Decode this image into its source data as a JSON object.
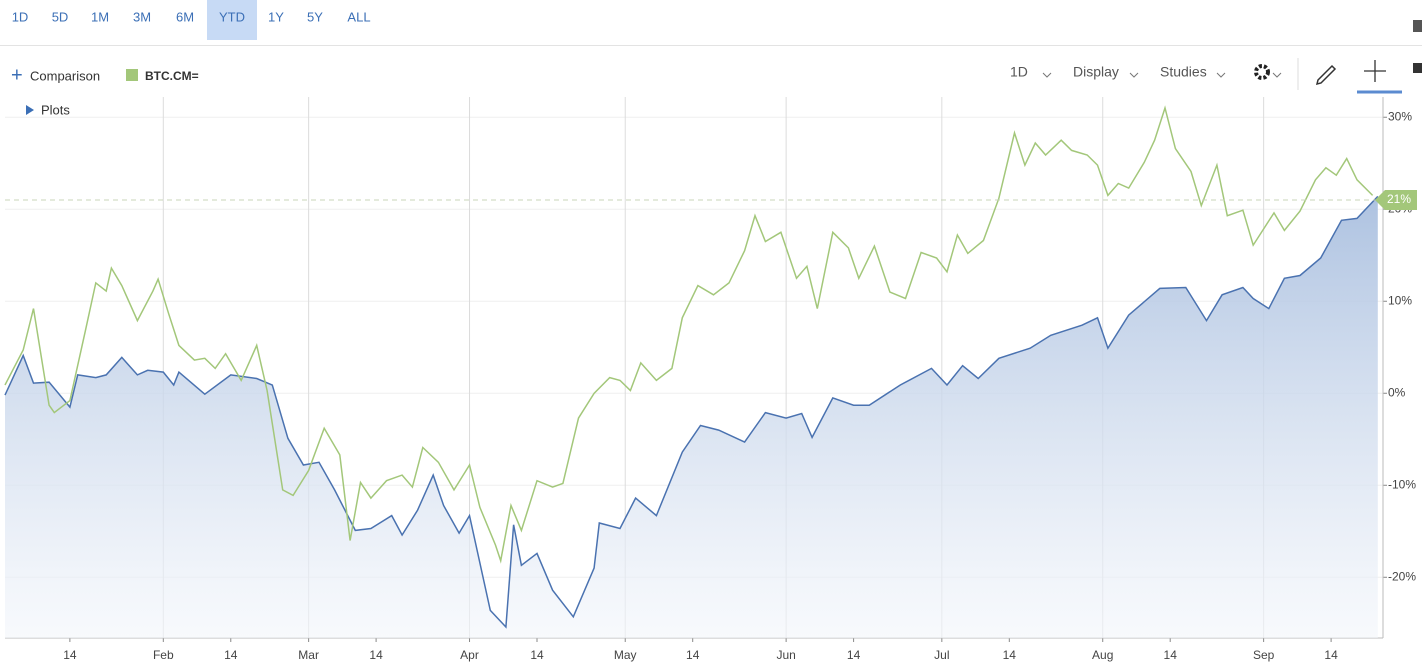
{
  "toolbar": {
    "ranges": [
      "1D",
      "5D",
      "1M",
      "3M",
      "6M",
      "YTD",
      "1Y",
      "5Y",
      "ALL"
    ],
    "selected": 5
  },
  "header": {
    "comparison": "Comparison",
    "plots": "Plots",
    "interval": "1D",
    "display": "Display",
    "studies": "Studies"
  },
  "chart_data": {
    "type": "line",
    "series": [
      {
        "color": "#4a72b0",
        "area": true,
        "x": [
          1.5,
          5,
          7,
          10,
          14,
          15.5,
          19,
          21,
          24,
          27,
          29,
          32,
          34,
          35,
          40,
          45,
          50,
          53,
          56,
          59,
          62,
          65,
          69,
          72,
          76,
          78,
          81,
          84,
          86,
          89,
          91,
          95,
          98,
          99.5,
          101,
          104,
          107,
          111,
          115,
          116,
          120,
          123,
          127,
          132,
          135.5,
          139,
          144,
          148,
          152,
          155,
          157,
          161,
          165,
          168,
          174,
          180,
          183,
          186,
          189,
          193,
          199,
          203,
          209,
          212,
          214,
          218,
          224,
          229,
          233,
          236,
          240,
          242,
          245,
          248,
          251,
          255,
          259,
          262,
          266
        ],
        "values": [
          -0.2,
          4.1,
          1.1,
          1.2,
          -1.5,
          2,
          1.7,
          2,
          3.9,
          2,
          2.5,
          2.3,
          0.9,
          2.3,
          -0.1,
          2,
          1.6,
          0.9,
          -4.9,
          -7.8,
          -7.5,
          -10.5,
          -14.9,
          -14.7,
          -13.3,
          -15.4,
          -12.7,
          -8.9,
          -12.2,
          -15.2,
          -13.3,
          -23.6,
          -25.4,
          -14.3,
          -18.7,
          -17.4,
          -21.4,
          -24.3,
          -19,
          -14.1,
          -14.7,
          -11.4,
          -13.3,
          -6.4,
          -3.5,
          -4,
          -5.3,
          -2.1,
          -2.7,
          -2.2,
          -4.8,
          -0.5,
          -1.3,
          -1.3,
          0.9,
          2.7,
          0.9,
          3,
          1.6,
          3.8,
          4.9,
          6.3,
          7.4,
          8.2,
          4.9,
          8.5,
          11.4,
          11.5,
          7.9,
          10.7,
          11.5,
          10.3,
          9.2,
          12.5,
          12.8,
          14.7,
          18.8,
          19,
          21.4
        ]
      },
      {
        "name": "BTC.CM=",
        "color": "#a3c77a",
        "x": [
          1.5,
          5,
          7,
          10,
          11,
          14,
          17,
          19,
          21,
          22,
          24,
          27,
          30,
          31,
          33,
          35,
          38,
          40,
          42,
          44,
          47,
          50,
          52,
          55,
          57,
          60,
          63,
          66,
          68,
          70,
          72,
          75,
          78,
          80,
          82,
          85,
          88,
          91,
          93,
          96,
          97,
          99,
          101,
          104,
          107,
          109,
          112,
          115,
          118,
          120,
          122,
          124,
          127,
          130,
          132,
          135,
          138,
          141,
          144,
          146,
          148,
          151,
          154,
          156,
          158,
          161,
          164,
          166,
          169,
          172,
          175,
          178,
          181,
          183,
          185,
          187,
          190,
          193,
          196,
          198,
          200,
          202,
          205,
          207,
          210,
          212,
          214,
          216,
          218,
          221,
          223,
          225,
          227,
          230,
          232,
          235,
          237,
          240,
          242,
          246,
          248,
          251,
          254,
          256,
          258,
          260,
          262,
          265
        ],
        "values": [
          0.9,
          4.7,
          9.2,
          -1.3,
          -2.1,
          -0.8,
          6.8,
          12,
          11.1,
          13.6,
          11.7,
          7.9,
          11.1,
          12.4,
          8.7,
          5.2,
          3.6,
          3.8,
          2.7,
          4.3,
          1.4,
          5.2,
          0.3,
          -10.5,
          -11.1,
          -8.4,
          -3.8,
          -6.7,
          -16,
          -9.7,
          -11.4,
          -9.5,
          -8.9,
          -10.2,
          -5.9,
          -7.5,
          -10.5,
          -7.8,
          -12.4,
          -16.5,
          -18.2,
          -12.2,
          -14.9,
          -9.5,
          -10.2,
          -9.8,
          -2.7,
          0,
          1.7,
          1.4,
          0.3,
          3.3,
          1.4,
          2.7,
          8.2,
          11.7,
          10.7,
          12,
          15.5,
          19.3,
          16.5,
          17.5,
          12.5,
          13.8,
          9.2,
          17.5,
          15.8,
          12.5,
          16,
          11,
          10.3,
          15.3,
          14.7,
          13.2,
          17.2,
          15.2,
          16.6,
          21.2,
          28.3,
          24.8,
          27.2,
          25.9,
          27.5,
          26.4,
          25.9,
          24.8,
          21.5,
          22.8,
          22.3,
          25.1,
          27.5,
          31,
          26.6,
          24.1,
          20.4,
          24.8,
          19.3,
          19.9,
          16.1,
          19.6,
          17.7,
          19.8,
          23.2,
          24.5,
          23.7,
          25.5,
          23.2,
          21.5
        ]
      }
    ],
    "xlim": [
      1.5,
      267
    ],
    "xticks": [
      {
        "value": 14,
        "label": "14"
      },
      {
        "value": 32,
        "label": "Feb"
      },
      {
        "value": 45,
        "label": "14"
      },
      {
        "value": 60,
        "label": "Mar"
      },
      {
        "value": 73,
        "label": "14"
      },
      {
        "value": 91,
        "label": "Apr"
      },
      {
        "value": 104,
        "label": "14"
      },
      {
        "value": 121,
        "label": "May"
      },
      {
        "value": 134,
        "label": "14"
      },
      {
        "value": 152,
        "label": "Jun"
      },
      {
        "value": 165,
        "label": "14"
      },
      {
        "value": 182,
        "label": "Jul"
      },
      {
        "value": 195,
        "label": "14"
      },
      {
        "value": 213,
        "label": "Aug"
      },
      {
        "value": 226,
        "label": "14"
      },
      {
        "value": 244,
        "label": "Sep"
      },
      {
        "value": 257,
        "label": "14"
      }
    ],
    "ylim": [
      -26.6,
      32.2
    ],
    "yticks": [
      {
        "value": -20,
        "label": "-20%"
      },
      {
        "value": -10,
        "label": "-10%"
      },
      {
        "value": 0,
        "label": "0%"
      },
      {
        "value": 10,
        "label": "10%"
      },
      {
        "value": 20,
        "label": "20%"
      },
      {
        "value": 30,
        "label": "30%"
      }
    ],
    "last_value": {
      "value": 21,
      "label": "21%"
    },
    "grid": true
  }
}
